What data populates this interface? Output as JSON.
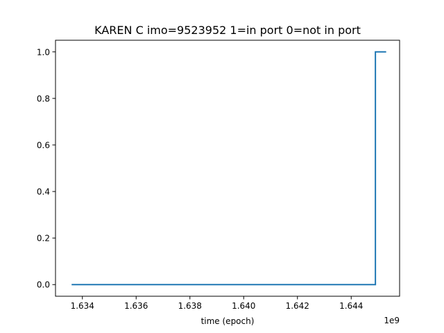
{
  "chart_data": {
    "type": "line",
    "title": "KAREN C imo=9523952 1=in port 0=not in port",
    "xlabel": "time (epoch)",
    "ylabel": "",
    "x_offset_label": "1e9",
    "xlim": [
      1.633,
      1.6458
    ],
    "ylim": [
      -0.05,
      1.05
    ],
    "xticks": [
      1.634,
      1.636,
      1.638,
      1.64,
      1.642,
      1.644
    ],
    "xtick_labels": [
      "1.634",
      "1.636",
      "1.638",
      "1.640",
      "1.642",
      "1.644"
    ],
    "yticks": [
      0.0,
      0.2,
      0.4,
      0.6,
      0.8,
      1.0
    ],
    "ytick_labels": [
      "0.0",
      "0.2",
      "0.4",
      "0.6",
      "0.8",
      "1.0"
    ],
    "grid": false,
    "series": [
      {
        "color": "#1f77b4",
        "drawstyle": "steps",
        "x": [
          1.6336,
          1.6449,
          1.6449,
          1.6453
        ],
        "y": [
          0,
          0,
          1,
          1
        ]
      }
    ]
  }
}
